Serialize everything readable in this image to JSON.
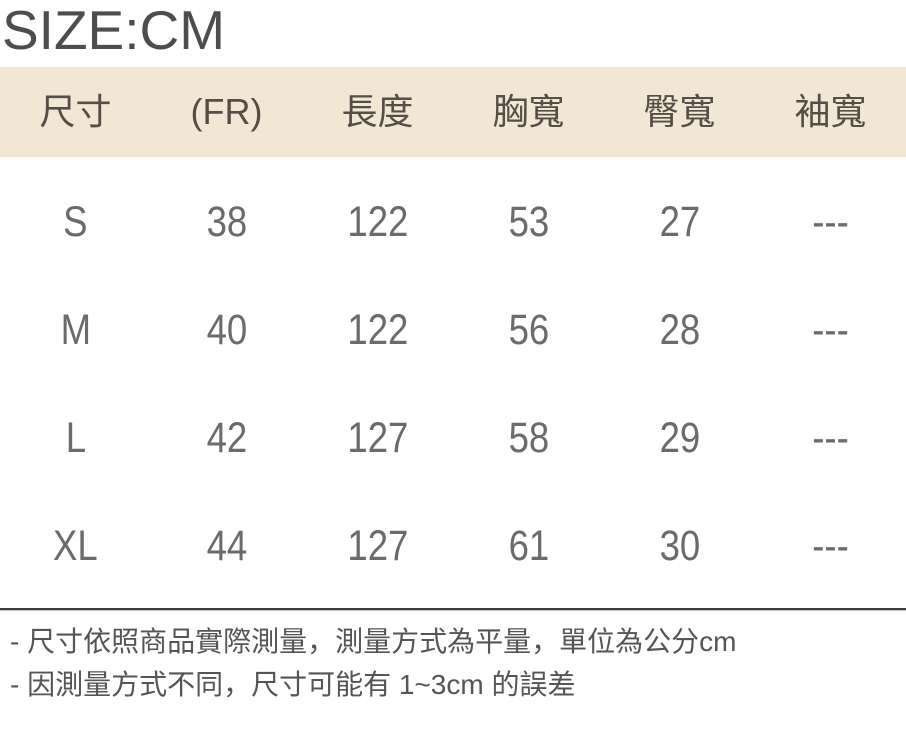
{
  "title": "SIZE:CM",
  "table": {
    "columns": [
      "尺寸",
      "(FR)",
      "長度",
      "胸寬",
      "臀寬",
      "袖寬"
    ],
    "rows": [
      [
        "S",
        "38",
        "122",
        "53",
        "27",
        "---"
      ],
      [
        "M",
        "40",
        "122",
        "56",
        "28",
        "---"
      ],
      [
        "L",
        "42",
        "127",
        "58",
        "29",
        "---"
      ],
      [
        "XL",
        "44",
        "127",
        "61",
        "30",
        "---"
      ]
    ]
  },
  "notes": [
    "- 尺寸依照商品實際測量，測量方式為平量，單位為公分cm",
    "- 因測量方式不同，尺寸可能有 1~3cm 的誤差"
  ],
  "colors": {
    "header_bg": "#f2e6d4",
    "header_text": "#544e46",
    "data_text": "#6b6b6b",
    "title_text": "#4d4d4d",
    "note_text": "#555555",
    "divider": "#3d3d3d"
  }
}
